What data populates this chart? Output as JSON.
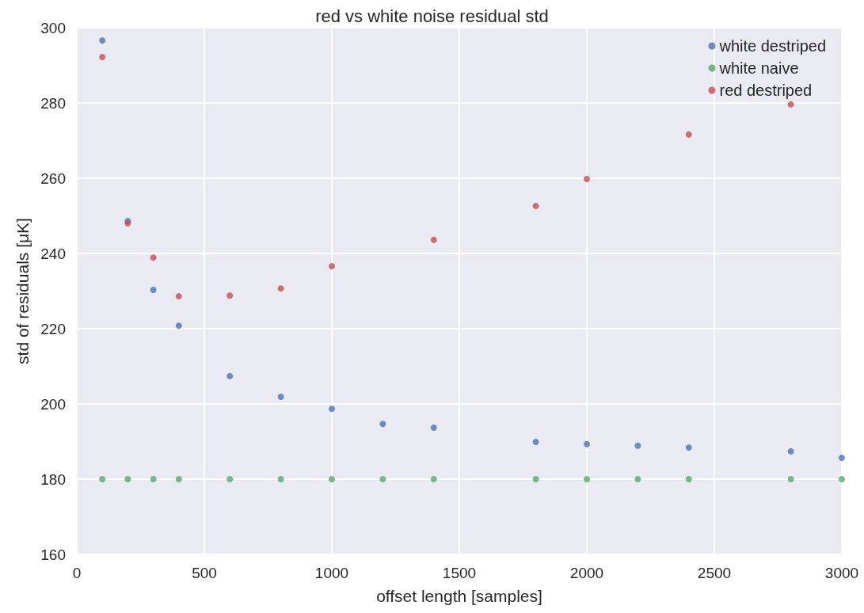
{
  "chart_data": {
    "type": "scatter",
    "title": "red vs white noise residual std",
    "xlabel": "offset length [samples]",
    "ylabel": "std of residuals [μK]",
    "xlim": [
      0,
      3000
    ],
    "xticks": [
      0,
      500,
      1000,
      1500,
      2000,
      2500,
      3000
    ],
    "ylim": [
      160,
      300
    ],
    "yticks": [
      160,
      180,
      200,
      220,
      240,
      260,
      280,
      300
    ],
    "grid": true,
    "legend": "top right",
    "marker": "circle",
    "series": [
      {
        "name": "white destriped",
        "color": "#4c72b0",
        "x": [
          100,
          200,
          300,
          400,
          600,
          800,
          1000,
          1200,
          1400,
          1800,
          2000,
          2200,
          2400,
          2800,
          3000
        ],
        "values": [
          296.6,
          248.6,
          230.3,
          220.8,
          207.4,
          201.9,
          198.7,
          194.7,
          193.7,
          189.9,
          189.3,
          188.9,
          188.4,
          187.4,
          185.7
        ]
      },
      {
        "name": "white naive",
        "color": "#55a868",
        "x": [
          100,
          200,
          300,
          400,
          600,
          800,
          1000,
          1200,
          1400,
          1800,
          2000,
          2200,
          2400,
          2800,
          3000
        ],
        "values": [
          180,
          180,
          180,
          180,
          180,
          180,
          180,
          180,
          180,
          180,
          180,
          180,
          180,
          180,
          180
        ]
      },
      {
        "name": "red destriped",
        "color": "#c44e52",
        "x": [
          100,
          200,
          300,
          400,
          600,
          800,
          1000,
          1400,
          1800,
          2000,
          2400,
          2800
        ],
        "values": [
          292.2,
          248.0,
          238.9,
          228.6,
          228.8,
          230.7,
          236.6,
          243.6,
          252.6,
          259.8,
          271.6,
          279.6
        ]
      }
    ]
  }
}
